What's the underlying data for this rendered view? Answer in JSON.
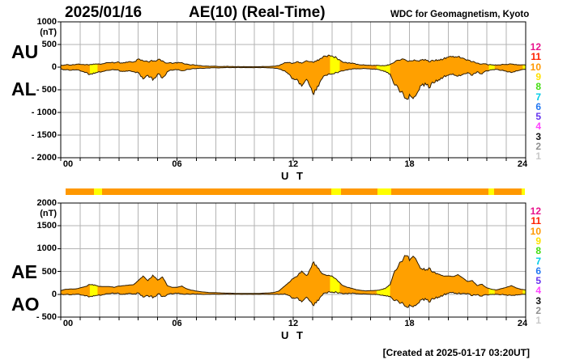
{
  "header": {
    "date": "2025/01/16",
    "title": "AE(10) (Real-Time)",
    "org": "WDC for Geomagnetism, Kyoto"
  },
  "footer": {
    "created": "[Created at 2025-01-17 03:20UT]"
  },
  "colors": {
    "fill_orange": "#FFA000",
    "fill_yellow": "#FFFF00",
    "bar_orange": "#FF9800",
    "outline": "#2B1A00",
    "grid": "#B3B3B3",
    "frame": "#000000"
  },
  "station_scale": [
    {
      "label": "12",
      "color": "#E8128C"
    },
    {
      "label": "11",
      "color": "#FF2000"
    },
    {
      "label": "10",
      "color": "#FF9800"
    },
    {
      "label": "9",
      "color": "#FFE000"
    },
    {
      "label": "8",
      "color": "#44DD11"
    },
    {
      "label": "7",
      "color": "#00CCE8"
    },
    {
      "label": "6",
      "color": "#2277F2"
    },
    {
      "label": "5",
      "color": "#6633EE"
    },
    {
      "label": "4",
      "color": "#FF44FF"
    },
    {
      "label": "3",
      "color": "#111111"
    },
    {
      "label": "2",
      "color": "#909090"
    },
    {
      "label": "1",
      "color": "#C9C9C9"
    }
  ],
  "panels": [
    {
      "id": "top",
      "left_labels": [
        "AU",
        "AL"
      ],
      "unit": "(nT)",
      "ylim": [
        -2000,
        1000
      ],
      "y_ticks": [
        "1000",
        "500",
        "0",
        "-500",
        "-1000",
        "-1500",
        "-2000"
      ],
      "x_ticks": [
        "00",
        "06",
        "12",
        "18",
        "24"
      ],
      "xlabel": "U T",
      "upper_series": "AU",
      "lower_series": "AL"
    },
    {
      "id": "bottom",
      "left_labels": [
        "AE",
        "AO"
      ],
      "unit": "(nT)",
      "ylim": [
        -500,
        2000
      ],
      "y_ticks": [
        "2000",
        "1500",
        "1000",
        "500",
        "0",
        "-500"
      ],
      "x_ticks": [
        "00",
        "06",
        "12",
        "18",
        "24"
      ],
      "xlabel": "U T",
      "upper_series": "AE",
      "lower_series": "AO"
    }
  ],
  "chart_data": {
    "type": "area",
    "title": "AE(10) (Real-Time) 2025/01/16",
    "xlabel": "U T",
    "ylabel": "nT",
    "x_hours": {
      "start": 0,
      "step": 0.25,
      "end": 24
    },
    "series": [
      {
        "name": "AU",
        "values": [
          40,
          50,
          45,
          55,
          60,
          50,
          55,
          65,
          70,
          80,
          100,
          90,
          110,
          100,
          120,
          110,
          180,
          140,
          120,
          130,
          160,
          140,
          90,
          80,
          90,
          100,
          70,
          50,
          40,
          30,
          25,
          20,
          20,
          15,
          15,
          15,
          10,
          10,
          10,
          10,
          10,
          10,
          15,
          15,
          20,
          30,
          80,
          100,
          90,
          120,
          100,
          130,
          110,
          160,
          200,
          230,
          250,
          200,
          130,
          100,
          80,
          60,
          50,
          45,
          40,
          35,
          30,
          35,
          60,
          120,
          150,
          170,
          140,
          160,
          130,
          150,
          120,
          140,
          160,
          180,
          220,
          240,
          230,
          200,
          160,
          120,
          90,
          70,
          60,
          50,
          45,
          55,
          60,
          70,
          60,
          50,
          45
        ]
      },
      {
        "name": "AL",
        "values": [
          -40,
          -60,
          -70,
          -60,
          -80,
          -120,
          -160,
          -140,
          -100,
          -90,
          -70,
          -60,
          -70,
          -90,
          -80,
          -100,
          -120,
          -260,
          -180,
          -290,
          -150,
          -240,
          -100,
          -70,
          -60,
          -80,
          -50,
          -40,
          -30,
          -25,
          -20,
          -15,
          -15,
          -15,
          -10,
          -10,
          -10,
          -10,
          -10,
          -10,
          -10,
          -10,
          -10,
          -15,
          -20,
          -40,
          -80,
          -150,
          -250,
          -300,
          -380,
          -300,
          -570,
          -420,
          -250,
          -180,
          -150,
          -120,
          -80,
          -60,
          -50,
          -40,
          -35,
          -30,
          -40,
          -50,
          -70,
          -90,
          -150,
          -400,
          -550,
          -680,
          -600,
          -650,
          -500,
          -420,
          -460,
          -350,
          -280,
          -220,
          -180,
          -150,
          -200,
          -160,
          -120,
          -180,
          -100,
          -150,
          -80,
          -60,
          -50,
          -70,
          -90,
          -120,
          -80,
          -60,
          -50
        ]
      }
    ],
    "derived": {
      "AE": "AU - AL",
      "AO": "(AU + AL) / 2"
    },
    "yellow_intervals_hours": [
      [
        1.5,
        1.9
      ],
      [
        13.9,
        14.4
      ],
      [
        16.3,
        17.0
      ],
      [
        22.1,
        22.4
      ],
      [
        23.85,
        24.0
      ]
    ],
    "legend": "right-side colored numbers 12..1 = number of contributing stations (10 = orange fill, 9 = yellow fill)"
  }
}
